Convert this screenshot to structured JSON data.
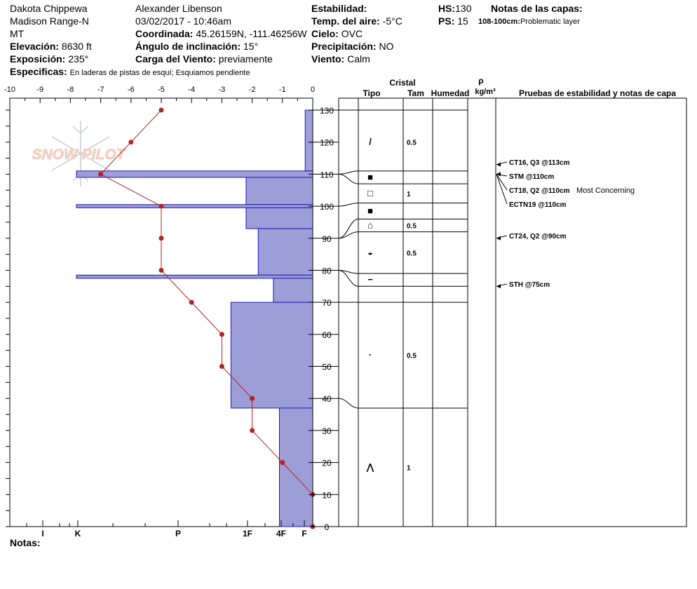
{
  "header": {
    "location": "Dakota Chippewa",
    "range": "Madison Range-N",
    "state": "MT",
    "elev_label": "Elevación:",
    "elev_value": "8630 ft",
    "aspect_label": "Exposición:",
    "aspect_value": "235°",
    "specifics_label": "Especificas:",
    "specifics_value": "En laderas de pistas de esquí;  Esquiamos pendiente",
    "observer": "Alexander Libenson",
    "datetime": "03/02/2017 - 10:46am",
    "coord_label": "Coordinada:",
    "coord_value": "45.26159N, -111.46256W",
    "incl_label": "Ángulo de inclinación:",
    "incl_value": "15°",
    "wind_load_label": "Carga del Viento:",
    "wind_load_value": "previamente",
    "stability_label": "Estabilidad:",
    "air_temp_label": "Temp. del aire:",
    "air_temp_value": "-5°C",
    "sky_label": "Cielo:",
    "sky_value": "OVC",
    "precip_label": "Precipitación:",
    "precip_value": "NO",
    "wind_label": "Viento:",
    "wind_value": "Calm",
    "hs_label": "HS:",
    "hs_value": "130",
    "ps_label": "PS:",
    "ps_value": "15",
    "layer_notes_title": "Notas de las capas:",
    "layer_note_range": "108-100cm:",
    "layer_note_text": "Problematic layer",
    "notes_label": "Notas:"
  },
  "logo_text": "SNOW PILOT",
  "table_headers": {
    "cristal": "Cristal",
    "tipo": "Tipo",
    "tam": "Tam",
    "humedad": "Humedad",
    "rho": "ρ",
    "density_unit": "kg/m³",
    "tests": "Pruebas de estabilidad y notas de capa"
  },
  "chart_data": {
    "type": "snow_profile",
    "temp_axis": {
      "ticks": [
        "-10",
        "-9",
        "-8",
        "-7",
        "-6",
        "-5",
        "-4",
        "-3",
        "-2",
        "-1",
        "0"
      ],
      "range": [
        -10,
        0
      ]
    },
    "height_axis": {
      "ticks": [
        "0",
        "10",
        "20",
        "30",
        "40",
        "50",
        "60",
        "70",
        "80",
        "90",
        "100",
        "110",
        "120",
        "130"
      ],
      "range": [
        0,
        130
      ]
    },
    "hardness_axis": {
      "labels": [
        "I",
        "K",
        "P",
        "1F",
        "4F",
        "F"
      ]
    },
    "temperature_profile": [
      {
        "h": 130,
        "t": -5
      },
      {
        "h": 120,
        "t": -6
      },
      {
        "h": 110,
        "t": -7
      },
      {
        "h": 100,
        "t": -5
      },
      {
        "h": 90,
        "t": -5
      },
      {
        "h": 80,
        "t": -5
      },
      {
        "h": 70,
        "t": -4
      },
      {
        "h": 60,
        "t": -3
      },
      {
        "h": 50,
        "t": -3
      },
      {
        "h": 40,
        "t": -2
      },
      {
        "h": 30,
        "t": -2
      },
      {
        "h": 20,
        "t": -1
      },
      {
        "h": 10,
        "t": 0
      },
      {
        "h": 0,
        "t": 0
      }
    ],
    "hardness_layers": [
      {
        "top": 130,
        "bottom": 111,
        "hardness": -0.25
      },
      {
        "top": 111,
        "bottom": 109,
        "hardness": -7.8
      },
      {
        "top": 109,
        "bottom": 100.5,
        "hardness": -2.2
      },
      {
        "top": 100.5,
        "bottom": 99.5,
        "hardness": -7.8
      },
      {
        "top": 99.5,
        "bottom": 93,
        "hardness": -2.2
      },
      {
        "top": 93,
        "bottom": 78.5,
        "hardness": -1.8
      },
      {
        "top": 78.5,
        "bottom": 77.5,
        "hardness": -7.8
      },
      {
        "top": 77.5,
        "bottom": 70,
        "hardness": -1.3
      },
      {
        "top": 70,
        "bottom": 37,
        "hardness": -2.7
      },
      {
        "top": 37,
        "bottom": 0,
        "hardness": -1.1
      }
    ],
    "layer_boundaries": [
      130,
      111,
      107,
      101,
      96,
      92,
      79,
      75,
      70,
      37,
      0
    ],
    "crystals": [
      {
        "h": 120,
        "glyph": "/",
        "size": "0.5"
      },
      {
        "h": 109,
        "glyph": "■",
        "size": ""
      },
      {
        "h": 104,
        "glyph": "□",
        "size": "1"
      },
      {
        "h": 98.5,
        "glyph": "■",
        "size": ""
      },
      {
        "h": 94,
        "glyph": "⌂",
        "size": "0.5"
      },
      {
        "h": 85.5,
        "glyph": "◒",
        "size": "0.5"
      },
      {
        "h": 77,
        "glyph": "−",
        "size": ""
      },
      {
        "h": 53.5,
        "glyph": "·",
        "size": "0.5"
      },
      {
        "h": 18.5,
        "glyph": "⋀",
        "size": "1"
      }
    ],
    "stability_tests": [
      {
        "h": 113,
        "label": "CT16, Q3 @113cm",
        "note": ""
      },
      {
        "h": 110,
        "label": "STM @110cm",
        "note": ""
      },
      {
        "h": 110,
        "label": "CT18, Q2 @110cm",
        "note": "Most Concerning"
      },
      {
        "h": 110,
        "label": "ECTN19 @110cm",
        "note": ""
      },
      {
        "h": 90,
        "label": "CT24, Q2 @90cm",
        "note": ""
      },
      {
        "h": 75,
        "label": "STH @75cm",
        "note": ""
      }
    ],
    "colors": {
      "hardness_fill": "#9d9ed8",
      "hardness_stroke": "#1a1ab4",
      "temp_line": "#b22222",
      "logo": "#f2b89a"
    }
  }
}
